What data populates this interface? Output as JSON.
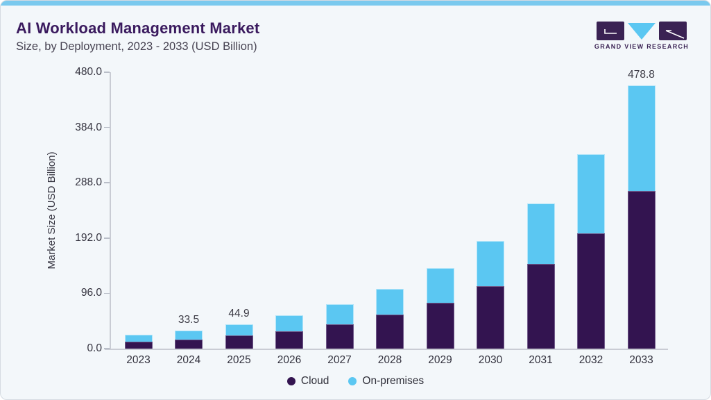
{
  "header": {
    "title": "AI Workload Management Market",
    "subtitle": "Size, by Deployment, 2023 - 2033 (USD Billion)"
  },
  "logo": {
    "text": "GRAND VIEW RESEARCH"
  },
  "chart_data": {
    "type": "bar",
    "stacked": true,
    "title": "AI Workload Management Market Size, by Deployment, 2023 - 2033 (USD Billion)",
    "xlabel": "",
    "ylabel": "Market Size (USD Billion)",
    "ylim": [
      0,
      480
    ],
    "ytick_labels": [
      "0.0",
      "96.0",
      "192.0",
      "288.0",
      "384.0",
      "480.0"
    ],
    "grid": false,
    "legend_position": "bottom",
    "categories": [
      "2023",
      "2024",
      "2025",
      "2026",
      "2027",
      "2028",
      "2029",
      "2030",
      "2031",
      "2032",
      "2033"
    ],
    "series": [
      {
        "name": "Cloud",
        "color": "#331450",
        "values": [
          12.5,
          17.0,
          23.7,
          31.8,
          44.6,
          61.6,
          83.8,
          113.4,
          154.6,
          210.2,
          286.8
        ]
      },
      {
        "name": "On-premises",
        "color": "#5bc7f2",
        "values": [
          12.5,
          16.5,
          21.2,
          28.5,
          36.4,
          47.2,
          62.4,
          83.0,
          109.2,
          144.2,
          192.0
        ]
      }
    ],
    "totals": [
      25.0,
      33.5,
      44.9,
      60.3,
      81.0,
      108.8,
      146.2,
      196.4,
      263.8,
      354.4,
      478.8
    ],
    "bar_labels": [
      "",
      "33.5",
      "44.9",
      "",
      "",
      "",
      "",
      "",
      "",
      "",
      "478.8"
    ]
  },
  "colors": {
    "card_background": "#f3f7fa",
    "top_strip": "#7ac9ee",
    "title_text": "#3a1a5e",
    "cloud_bar": "#331450",
    "on_premises_bar": "#5bc7f2",
    "axis_line": "#c9ccd4",
    "axis_text": "#33323e"
  }
}
